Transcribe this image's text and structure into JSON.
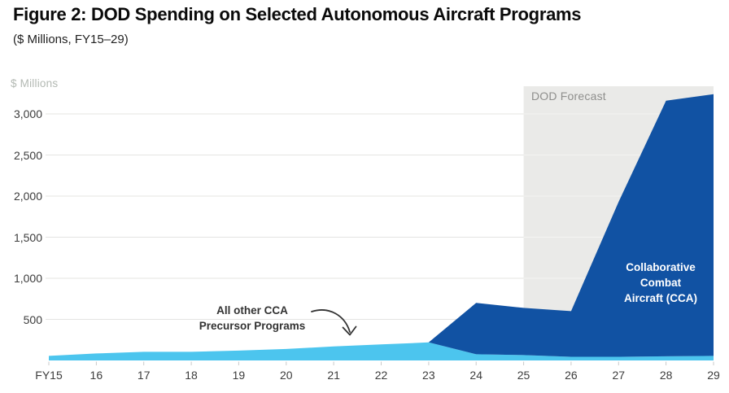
{
  "figure": {
    "title": "Figure 2: DOD Spending on Selected Autonomous Aircraft Programs",
    "subtitle": "($ Millions, FY15–29)"
  },
  "colors": {
    "precursor_blue": "#4cc5ee",
    "cca_blue": "#1152a3",
    "forecast_band": "#eaeae8",
    "grid_line": "#e4e4e2",
    "grid_line_on_band": "#f4f4f2",
    "axis_tick": "#c9c9c9",
    "axis_text": "#3c3c3c",
    "muted_text": "#8f8f8d",
    "annotation_text": "#333333"
  },
  "chart_data": {
    "type": "area",
    "stacked": true,
    "title": "Figure 2: DOD Spending on Selected Autonomous Aircraft Programs",
    "subtitle": "($ Millions, FY15–29)",
    "ylabel": "$ Millions",
    "xlabel": "",
    "grid": true,
    "ylim": [
      0,
      3300
    ],
    "yticks": [
      500,
      1000,
      1500,
      2000,
      2500,
      3000
    ],
    "ytick_labels": [
      "500",
      "1,000",
      "1,500",
      "2,000",
      "2,500",
      "3,000"
    ],
    "years": [
      15,
      16,
      17,
      18,
      19,
      20,
      21,
      22,
      23,
      24,
      25,
      26,
      27,
      28,
      29
    ],
    "x_tick_labels": [
      "FY15",
      "16",
      "17",
      "18",
      "19",
      "20",
      "21",
      "22",
      "23",
      "24",
      "25",
      "26",
      "27",
      "28",
      "29"
    ],
    "series": [
      {
        "name": "All other CCA Precursor Programs",
        "color": "#4cc5ee",
        "values": [
          55,
          85,
          105,
          105,
          120,
          140,
          170,
          195,
          220,
          75,
          65,
          45,
          45,
          50,
          55
        ]
      },
      {
        "name": "Collaborative Combat Aircraft (CCA)",
        "color": "#1152a3",
        "values": [
          0,
          0,
          0,
          0,
          0,
          0,
          0,
          0,
          0,
          625,
          575,
          555,
          1885,
          3110,
          3185
        ]
      }
    ],
    "stacked_totals": [
      55,
      85,
      105,
      105,
      120,
      140,
      170,
      195,
      220,
      700,
      640,
      600,
      1930,
      3160,
      3240
    ],
    "forecast_band": {
      "label": "DOD Forecast",
      "from_year": 25,
      "to_year": 29,
      "color": "#eaeae8"
    },
    "annotations": {
      "precursor_label": {
        "line1": "All other CCA",
        "line2": "Precursor Programs"
      },
      "cca_area_label": {
        "line1": "Collaborative",
        "line2": "Combat",
        "line3": "Aircraft (CCA)"
      }
    }
  }
}
